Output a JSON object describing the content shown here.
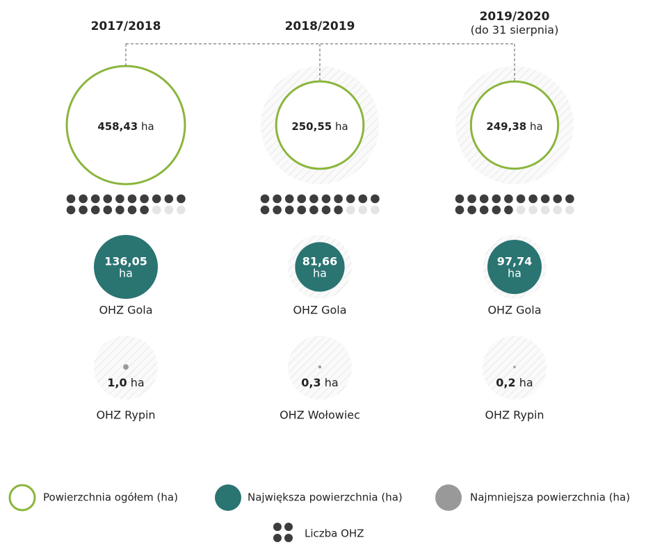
{
  "columns": [
    {
      "year": "2017/2018",
      "total": {
        "value": 458.43,
        "label": "458,43",
        "unit": "ha"
      },
      "dots": {
        "count": 17,
        "max": 20
      },
      "largest": {
        "value": 136.05,
        "label": "136,05",
        "unit": "ha",
        "name": "OHZ Gola"
      },
      "smallest": {
        "value": 1.0,
        "label": "1,0",
        "unit": "ha",
        "name": "OHZ Rypin"
      }
    },
    {
      "year": "2018/2019",
      "total": {
        "value": 250.55,
        "label": "250,55",
        "unit": "ha"
      },
      "dots": {
        "count": 17,
        "max": 20
      },
      "largest": {
        "value": 81.66,
        "label": "81,66",
        "unit": "ha",
        "name": "OHZ Gola"
      },
      "smallest": {
        "value": 0.3,
        "label": "0,3",
        "unit": "ha",
        "name": "OHZ Wołowiec"
      }
    },
    {
      "year": "2019/2020",
      "subtitle": "(do 31 sierpnia)",
      "total": {
        "value": 249.38,
        "label": "249,38",
        "unit": "ha"
      },
      "dots": {
        "count": 15,
        "max": 20
      },
      "largest": {
        "value": 97.74,
        "label": "97,74",
        "unit": "ha",
        "name": "OHZ Gola"
      },
      "smallest": {
        "value": 0.2,
        "label": "0,2",
        "unit": "ha",
        "name": "OHZ Rypin"
      }
    }
  ],
  "legend": {
    "total": "Powierzchnia ogółem (ha)",
    "largest": "Największa powierzchnia (ha)",
    "smallest": "Najmniejsza powierzchnia (ha)",
    "count": "Liczba OHZ"
  }
}
